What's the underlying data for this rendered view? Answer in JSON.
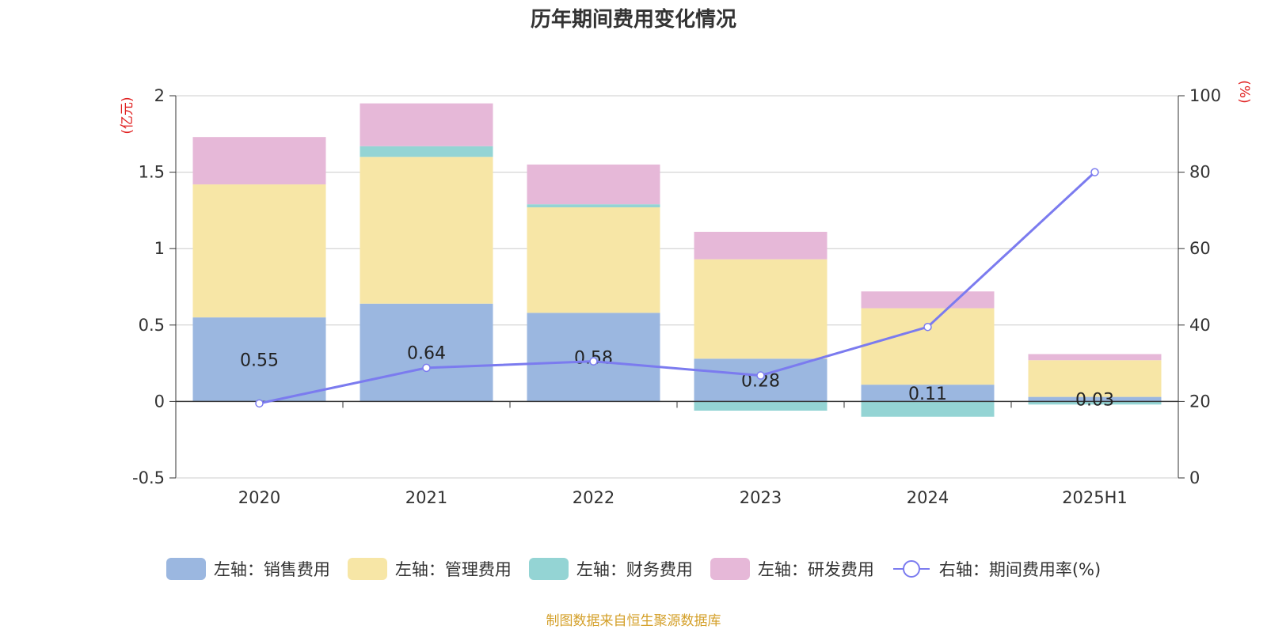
{
  "chart_data": {
    "type": "bar",
    "title": "历年期间费用变化情况",
    "categories": [
      "2020",
      "2021",
      "2022",
      "2023",
      "2024",
      "2025H1"
    ],
    "left_axis": {
      "unit_label": "(亿元)",
      "ylim": [
        -0.5,
        2
      ],
      "ticks": [
        "-0.5",
        "0",
        "0.5",
        "1",
        "1.5",
        "2"
      ]
    },
    "right_axis": {
      "unit_label": "(%)",
      "ylim": [
        0,
        100
      ],
      "ticks": [
        "0",
        "20",
        "40",
        "60",
        "80",
        "100"
      ]
    },
    "grid": true,
    "stacked": true,
    "series": [
      {
        "name": "左轴：销售费用",
        "axis": "left",
        "kind": "bar",
        "color": "#9bb7e0",
        "values": [
          0.55,
          0.64,
          0.58,
          0.28,
          0.11,
          0.03
        ]
      },
      {
        "name": "左轴：管理费用",
        "axis": "left",
        "kind": "bar",
        "color": "#f7e6a6",
        "values": [
          0.87,
          0.96,
          0.69,
          0.65,
          0.5,
          0.24
        ]
      },
      {
        "name": "左轴：财务费用",
        "axis": "left",
        "kind": "bar",
        "color": "#94d4d4",
        "values": [
          0.0,
          0.07,
          0.02,
          -0.06,
          -0.1,
          -0.02
        ]
      },
      {
        "name": "左轴：研发费用",
        "axis": "left",
        "kind": "bar",
        "color": "#e6b8d8",
        "values": [
          0.31,
          0.28,
          0.26,
          0.18,
          0.11,
          0.04
        ]
      },
      {
        "name": "右轴：期间费用率(%)",
        "axis": "right",
        "kind": "line",
        "color": "#7b7bef",
        "values": [
          19.5,
          28.8,
          30.5,
          26.8,
          39.5,
          80.0
        ]
      }
    ],
    "data_labels": [
      "0.55",
      "0.64",
      "0.58",
      "0.28",
      "0.11",
      "0.03"
    ],
    "legend_position": "bottom"
  },
  "source_note": "制图数据来自恒生聚源数据库"
}
